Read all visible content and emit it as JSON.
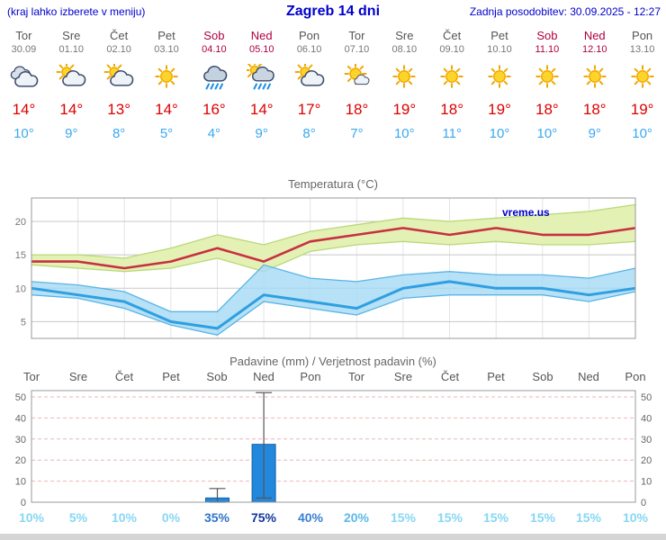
{
  "header": {
    "left_note": "(kraj lahko izberete v meniju)",
    "title": "Zagreb 14 dni",
    "updated": "Zadnja posodobitev: 30.09.2025 - 12:27"
  },
  "colors": {
    "accent_blue": "#0000cc",
    "weekend_red": "#b00040",
    "high_red": "#dd0000",
    "low_blue": "#3aa8f0"
  },
  "days": [
    {
      "name": "Tor",
      "date": "30.09",
      "weekend": false,
      "icon": "cloudy",
      "high": "14°",
      "low": "10°"
    },
    {
      "name": "Sre",
      "date": "01.10",
      "weekend": false,
      "icon": "partly",
      "high": "14°",
      "low": "9°"
    },
    {
      "name": "Čet",
      "date": "02.10",
      "weekend": false,
      "icon": "partly",
      "high": "13°",
      "low": "8°"
    },
    {
      "name": "Pet",
      "date": "03.10",
      "weekend": false,
      "icon": "sunny",
      "high": "14°",
      "low": "5°"
    },
    {
      "name": "Sob",
      "date": "04.10",
      "weekend": true,
      "icon": "rain",
      "high": "16°",
      "low": "4°"
    },
    {
      "name": "Ned",
      "date": "05.10",
      "weekend": true,
      "icon": "rain-sun",
      "high": "14°",
      "low": "9°"
    },
    {
      "name": "Pon",
      "date": "06.10",
      "weekend": false,
      "icon": "partly",
      "high": "17°",
      "low": "8°"
    },
    {
      "name": "Tor",
      "date": "07.10",
      "weekend": false,
      "icon": "sun-cloud",
      "high": "18°",
      "low": "7°"
    },
    {
      "name": "Sre",
      "date": "08.10",
      "weekend": false,
      "icon": "sunny",
      "high": "19°",
      "low": "10°"
    },
    {
      "name": "Čet",
      "date": "09.10",
      "weekend": false,
      "icon": "sunny",
      "high": "18°",
      "low": "11°"
    },
    {
      "name": "Pet",
      "date": "10.10",
      "weekend": false,
      "icon": "sunny",
      "high": "19°",
      "low": "10°"
    },
    {
      "name": "Sob",
      "date": "11.10",
      "weekend": true,
      "icon": "sunny",
      "high": "18°",
      "low": "10°"
    },
    {
      "name": "Ned",
      "date": "12.10",
      "weekend": true,
      "icon": "sunny",
      "high": "18°",
      "low": "9°"
    },
    {
      "name": "Pon",
      "date": "13.10",
      "weekend": false,
      "icon": "sunny",
      "high": "19°",
      "low": "10°"
    }
  ],
  "chart_data": [
    {
      "type": "line",
      "title": "Temperatura (°C)",
      "watermark": "vreme.us",
      "categories": [
        "Tor",
        "Sre",
        "Čet",
        "Pet",
        "Sob",
        "Ned",
        "Pon",
        "Tor",
        "Sre",
        "Čet",
        "Pet",
        "Sob",
        "Ned",
        "Pon"
      ],
      "ylim": [
        2.5,
        23.5
      ],
      "yticks": [
        5,
        10,
        15,
        20
      ],
      "series": [
        {
          "name": "max temperatura",
          "color": "#c83040",
          "width": 2.6,
          "values": [
            14,
            14,
            13,
            14,
            16,
            14,
            17,
            18,
            19,
            18,
            19,
            18,
            18,
            19
          ]
        },
        {
          "name": "min temperatura",
          "color": "#2f9fe0",
          "width": 3,
          "values": [
            10,
            9,
            8,
            5,
            4,
            9,
            8,
            7,
            10,
            11,
            10,
            10,
            9,
            10
          ]
        }
      ],
      "bands": [
        {
          "name": "max-range",
          "fill": "#e3f1b4",
          "edge": "#b9d878",
          "opacity": 1,
          "upper": [
            15,
            15,
            14.5,
            16,
            18,
            16.5,
            18.5,
            19.5,
            20.5,
            20,
            20.5,
            21,
            21.5,
            22.5
          ],
          "lower": [
            13.5,
            13,
            12.5,
            13,
            14.5,
            12.5,
            15.5,
            16.5,
            17,
            16.5,
            17,
            16.5,
            16.5,
            17
          ]
        },
        {
          "name": "min-range",
          "fill": "#a6daf4",
          "edge": "#5ab4e4",
          "opacity": 0.82,
          "upper": [
            11,
            10.5,
            9.5,
            6.5,
            6.5,
            13.5,
            11.5,
            11,
            12,
            12.5,
            12,
            12,
            11.5,
            13
          ],
          "lower": [
            9,
            8.5,
            7,
            4.5,
            3,
            8,
            7,
            6,
            8.5,
            9,
            9,
            9,
            8,
            9.5
          ]
        }
      ]
    },
    {
      "type": "bar",
      "title": "Padavine (mm) / Verjetnost padavin (%)",
      "categories": [
        "Tor",
        "Sre",
        "Čet",
        "Pet",
        "Sob",
        "Ned",
        "Pon",
        "Tor",
        "Sre",
        "Čet",
        "Pet",
        "Sob",
        "Ned",
        "Pon"
      ],
      "weekend_mask": [
        false,
        false,
        false,
        false,
        true,
        true,
        false,
        false,
        false,
        false,
        false,
        true,
        true,
        false
      ],
      "ylim": [
        0,
        53
      ],
      "yticks": [
        0,
        10,
        20,
        30,
        40,
        50
      ],
      "bar_color": "#2288dd",
      "bar_edge": "#1560a0",
      "values": [
        0,
        0,
        0,
        0,
        2,
        27.5,
        0,
        0,
        0,
        0,
        0,
        0,
        0,
        0
      ],
      "whiskers": [
        null,
        null,
        null,
        null,
        {
          "lo": 0,
          "hi": 6.5
        },
        {
          "lo": 2,
          "hi": 52
        },
        null,
        null,
        null,
        null,
        null,
        null,
        null,
        null
      ],
      "probabilities": [
        "10%",
        "5%",
        "10%",
        "0%",
        "35%",
        "75%",
        "40%",
        "20%",
        "15%",
        "15%",
        "15%",
        "15%",
        "15%",
        "10%"
      ],
      "prob_colors": [
        "#87d7f3",
        "#87d7f3",
        "#87d7f3",
        "#87d7f3",
        "#2f74c9",
        "#12369e",
        "#3a80d2",
        "#5cb8e8",
        "#87d7f3",
        "#87d7f3",
        "#87d7f3",
        "#87d7f3",
        "#87d7f3",
        "#87d7f3"
      ]
    }
  ]
}
